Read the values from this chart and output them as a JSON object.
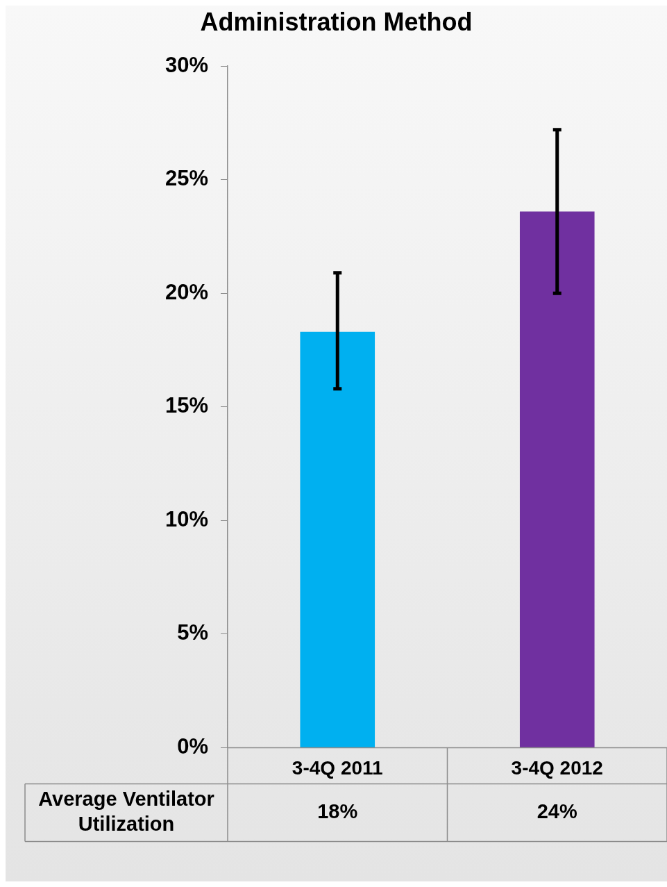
{
  "chart_data": {
    "type": "bar",
    "title": "Administration Method",
    "categories": [
      "3-4Q 2011",
      "3-4Q 2012"
    ],
    "series": [
      {
        "name": "Average Ventilator Utilization",
        "colors": [
          "#00b0f0",
          "#7030a0"
        ],
        "values": [
          18.3,
          23.6
        ],
        "errors": [
          [
            15.8,
            20.9
          ],
          [
            20.0,
            27.2
          ]
        ],
        "value_labels": [
          "18%",
          "24%"
        ]
      }
    ],
    "ylim": [
      0,
      30
    ],
    "yticks": [
      {
        "value": 0,
        "label": "0%"
      },
      {
        "value": 5,
        "label": "5%"
      },
      {
        "value": 10,
        "label": "10%"
      },
      {
        "value": 15,
        "label": "15%"
      },
      {
        "value": 20,
        "label": "20%"
      },
      {
        "value": 25,
        "label": "25%"
      },
      {
        "value": 30,
        "label": "30%"
      }
    ],
    "grid": false,
    "legend": false
  }
}
